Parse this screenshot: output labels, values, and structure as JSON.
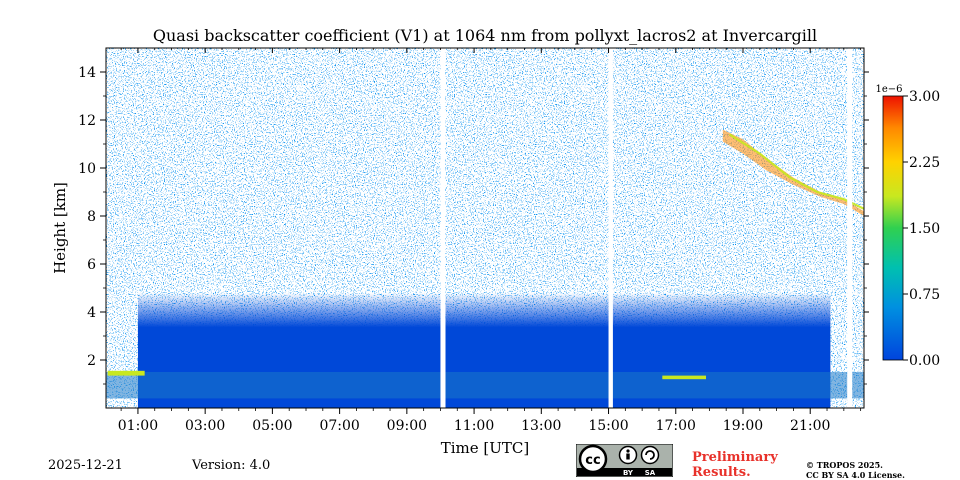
{
  "chart_data": {
    "type": "heatmap",
    "title": "Quasi backscatter coefficient (V1) at 1064 nm from pollyxt_lacros2 at Invercargill",
    "xlabel": "Time [UTC]",
    "ylabel": "Height [km]",
    "x_unit": "hours UTC",
    "xlim": [
      0.05,
      22.6
    ],
    "ylim": [
      0,
      15
    ],
    "x_ticks": [
      1,
      3,
      5,
      7,
      9,
      11,
      13,
      15,
      17,
      19,
      21
    ],
    "x_tick_labels": [
      "01:00",
      "03:00",
      "05:00",
      "07:00",
      "09:00",
      "11:00",
      "13:00",
      "15:00",
      "17:00",
      "19:00",
      "21:00"
    ],
    "y_ticks": [
      2,
      4,
      6,
      8,
      10,
      12,
      14
    ],
    "y_tick_labels": [
      "2",
      "4",
      "6",
      "8",
      "10",
      "12",
      "14"
    ],
    "colorbar": {
      "label_exponent": "1e−6",
      "vmin": 0.0,
      "vmax": 3.0,
      "ticks": [
        0.0,
        0.75,
        1.5,
        2.25,
        3.0
      ],
      "tick_labels": [
        "0.00",
        "0.75",
        "1.50",
        "2.25",
        "3.00"
      ],
      "colors": [
        "#0044dd",
        "#0090e0",
        "#00c0b0",
        "#30d050",
        "#c8e820",
        "#ffd200",
        "#ff8800",
        "#ee1100"
      ]
    },
    "data_gaps_hours": [
      [
        10.0,
        10.15
      ],
      [
        15.0,
        15.13
      ],
      [
        22.1,
        22.25
      ]
    ],
    "layers": [
      {
        "name": "background-noise",
        "t_start": 0.05,
        "t_end": 22.6,
        "h_min": 0.0,
        "h_max": 15.0,
        "value": 0.0
      },
      {
        "name": "aerosol-boundary-layer",
        "t_start": 1.0,
        "t_end": 21.6,
        "h_min": 0.0,
        "h_max": 4.8,
        "value": 0.15
      },
      {
        "name": "near-surface-layer",
        "t_start": 0.05,
        "t_end": 22.6,
        "h_min": 0.4,
        "h_max": 1.5,
        "value": 0.6
      },
      {
        "name": "low-cloud-morning",
        "t_start": 0.1,
        "t_end": 1.2,
        "h_min": 1.35,
        "h_max": 1.55,
        "value": 1.6
      },
      {
        "name": "low-cloud-afternoon",
        "t_start": 16.6,
        "t_end": 17.9,
        "h_min": 1.2,
        "h_max": 1.35,
        "value": 1.8
      },
      {
        "name": "cirrus-evening",
        "t_start": 18.4,
        "t_end": 22.6,
        "h_min": 8.2,
        "h_max": 12.0,
        "value": 2.5
      }
    ]
  },
  "footer": {
    "date": "2025-12-21",
    "version": "Version: 4.0",
    "preliminary_line1": "Preliminary",
    "preliminary_line2": "Results.",
    "copyright_line1": "© TROPOS 2025.",
    "copyright_line2": "CC BY SA 4.0 License.",
    "license_badge_text": [
      "BY",
      "SA"
    ]
  }
}
